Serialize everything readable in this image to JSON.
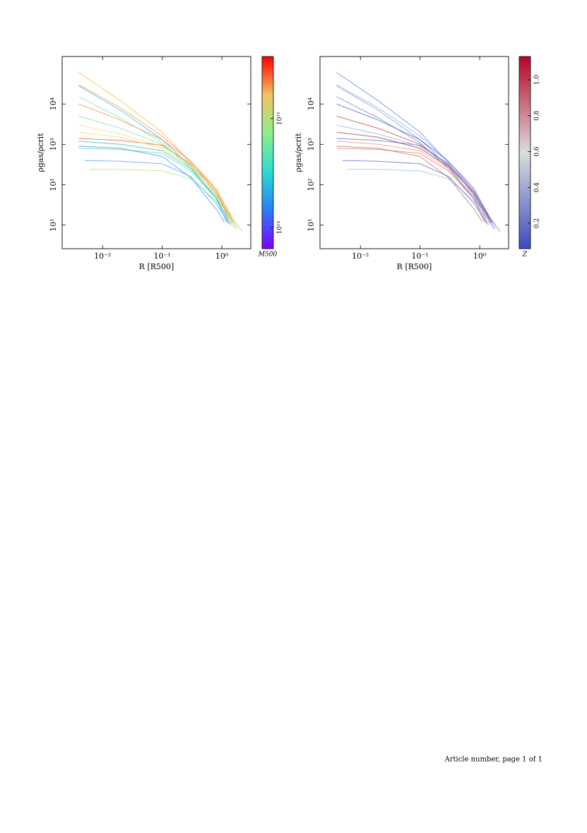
{
  "chart_data": [
    {
      "type": "line",
      "xlabel": "R [R500]",
      "ylabel": "ρgas/ρcrit",
      "xlog": true,
      "ylog": true,
      "xlim": [
        0.0021,
        3.05
      ],
      "ylim": [
        2.6,
        150000
      ],
      "xticks": [
        {
          "value": 0.01,
          "label": "10⁻²"
        },
        {
          "value": 0.1,
          "label": "10⁻¹"
        },
        {
          "value": 1,
          "label": "10⁰"
        }
      ],
      "yticks": [
        {
          "value": 10,
          "label": "10¹"
        },
        {
          "value": 100,
          "label": "10²"
        },
        {
          "value": 1000,
          "label": "10³"
        },
        {
          "value": 10000,
          "label": "10⁴"
        }
      ],
      "colorbar": {
        "label": "M500",
        "log": true,
        "lim": [
          64000000000000,
          3700000000000000
        ],
        "ticks": [
          {
            "value": 100000000000000,
            "label": "10¹⁴"
          },
          {
            "value": 1000000000000000,
            "label": "10¹⁵"
          }
        ]
      },
      "series": [
        {
          "color": "#f3522a",
          "x": [
            0.004,
            0.02,
            0.1,
            0.3,
            0.8,
            1.3
          ],
          "values": [
            1400,
            1250,
            950,
            330,
            70,
            14
          ]
        },
        {
          "color": "#2bb5e8",
          "x": [
            0.004,
            0.02,
            0.1,
            0.3,
            0.8,
            1.2
          ],
          "values": [
            28000,
            7000,
            1300,
            280,
            45,
            12
          ]
        },
        {
          "color": "#7fe0a0",
          "x": [
            0.004,
            0.02,
            0.1,
            0.3,
            0.8,
            1.6
          ],
          "values": [
            5000,
            2500,
            1000,
            300,
            60,
            11
          ]
        },
        {
          "color": "#ffb347",
          "x": [
            0.004,
            0.02,
            0.1,
            0.3,
            0.8,
            1.8
          ],
          "values": [
            60000,
            12000,
            2000,
            350,
            55,
            8
          ]
        },
        {
          "color": "#4fd0c8",
          "x": [
            0.004,
            0.02,
            0.1,
            0.3,
            0.8,
            1.4
          ],
          "values": [
            800,
            750,
            600,
            220,
            45,
            10
          ]
        },
        {
          "color": "#d9e85a",
          "x": [
            0.004,
            0.02,
            0.1,
            0.3,
            0.8,
            1.9
          ],
          "values": [
            3000,
            1800,
            900,
            320,
            70,
            9
          ]
        },
        {
          "color": "#ff7a30",
          "x": [
            0.004,
            0.02,
            0.1,
            0.3,
            0.8,
            1.5
          ],
          "values": [
            10000,
            4000,
            1300,
            380,
            80,
            14
          ]
        },
        {
          "color": "#3a8cf0",
          "x": [
            0.004,
            0.02,
            0.1,
            0.3,
            0.8,
            1.1
          ],
          "values": [
            900,
            800,
            500,
            150,
            25,
            12
          ]
        },
        {
          "color": "#a2e878",
          "x": [
            0.006,
            0.02,
            0.1,
            0.3,
            0.8,
            1.7
          ],
          "values": [
            240,
            240,
            220,
            140,
            40,
            8
          ]
        },
        {
          "color": "#6fe8b0",
          "x": [
            0.004,
            0.02,
            0.1,
            0.3,
            0.8,
            2.2
          ],
          "values": [
            15000,
            4500,
            1100,
            250,
            45,
            7
          ]
        },
        {
          "color": "#ffd060",
          "x": [
            0.004,
            0.02,
            0.1,
            0.3,
            0.8,
            1.6
          ],
          "values": [
            2000,
            1500,
            800,
            280,
            65,
            12
          ]
        },
        {
          "color": "#5098f5",
          "x": [
            0.005,
            0.02,
            0.1,
            0.3,
            0.8,
            1.3
          ],
          "values": [
            400,
            380,
            330,
            160,
            35,
            11
          ]
        },
        {
          "color": "#ff9040",
          "x": [
            0.004,
            0.02,
            0.1,
            0.3,
            0.8,
            1.5
          ],
          "values": [
            30000,
            8000,
            1600,
            380,
            70,
            11
          ]
        },
        {
          "color": "#20c0b0",
          "x": [
            0.004,
            0.02,
            0.1,
            0.3,
            0.8,
            1.4
          ],
          "values": [
            1200,
            1000,
            700,
            250,
            50,
            10
          ]
        }
      ]
    },
    {
      "type": "line",
      "xlabel": "R [R500]",
      "ylabel": "ρgas/ρcrit",
      "xlog": true,
      "ylog": true,
      "xlim": [
        0.0021,
        3.05
      ],
      "ylim": [
        2.6,
        150000
      ],
      "xticks": [
        {
          "value": 0.01,
          "label": "10⁻²"
        },
        {
          "value": 0.1,
          "label": "10⁻¹"
        },
        {
          "value": 1,
          "label": "10⁰"
        }
      ],
      "yticks": [
        {
          "value": 10,
          "label": "10¹"
        },
        {
          "value": 100,
          "label": "10²"
        },
        {
          "value": 1000,
          "label": "10³"
        },
        {
          "value": 10000,
          "label": "10⁴"
        }
      ],
      "colorbar": {
        "label": "Z",
        "log": false,
        "lim": [
          0.058,
          1.13
        ],
        "ticks": [
          0.2,
          0.4,
          0.6,
          0.8,
          {
            "value": 1,
            "label": "1.0"
          }
        ]
      },
      "series": [
        {
          "color": "#4a6fd8",
          "x": [
            0.004,
            0.02,
            0.1,
            0.3,
            0.8,
            1.3
          ],
          "values": [
            1400,
            1250,
            950,
            330,
            70,
            14
          ]
        },
        {
          "color": "#7090e8",
          "x": [
            0.004,
            0.02,
            0.1,
            0.3,
            0.8,
            1.2
          ],
          "values": [
            28000,
            7000,
            1300,
            280,
            45,
            12
          ]
        },
        {
          "color": "#c84040",
          "x": [
            0.004,
            0.02,
            0.1,
            0.3,
            0.8,
            1.6
          ],
          "values": [
            5000,
            2500,
            1000,
            300,
            60,
            11
          ]
        },
        {
          "color": "#5a7ce0",
          "x": [
            0.004,
            0.02,
            0.1,
            0.3,
            0.8,
            1.8
          ],
          "values": [
            60000,
            12000,
            2000,
            350,
            55,
            8
          ]
        },
        {
          "color": "#e07060",
          "x": [
            0.004,
            0.02,
            0.1,
            0.3,
            0.8,
            1.4
          ],
          "values": [
            800,
            750,
            600,
            220,
            45,
            10
          ]
        },
        {
          "color": "#8aa8f0",
          "x": [
            0.004,
            0.02,
            0.1,
            0.3,
            0.8,
            1.9
          ],
          "values": [
            3000,
            1800,
            900,
            320,
            70,
            9
          ]
        },
        {
          "color": "#3b55c8",
          "x": [
            0.004,
            0.02,
            0.1,
            0.3,
            0.8,
            1.5
          ],
          "values": [
            10000,
            4000,
            1300,
            380,
            80,
            14
          ]
        },
        {
          "color": "#d06050",
          "x": [
            0.004,
            0.02,
            0.1,
            0.3,
            0.8,
            1.1
          ],
          "values": [
            900,
            800,
            500,
            150,
            25,
            12
          ]
        },
        {
          "color": "#a0b8f5",
          "x": [
            0.006,
            0.02,
            0.1,
            0.3,
            0.8,
            1.7
          ],
          "values": [
            240,
            240,
            220,
            140,
            40,
            8
          ]
        },
        {
          "color": "#6080e0",
          "x": [
            0.004,
            0.02,
            0.1,
            0.3,
            0.8,
            2.2
          ],
          "values": [
            15000,
            4500,
            1100,
            250,
            45,
            7
          ]
        },
        {
          "color": "#b03030",
          "x": [
            0.004,
            0.02,
            0.1,
            0.3,
            0.8,
            1.6
          ],
          "values": [
            2000,
            1500,
            800,
            280,
            65,
            12
          ]
        },
        {
          "color": "#5068d0",
          "x": [
            0.005,
            0.02,
            0.1,
            0.3,
            0.8,
            1.3
          ],
          "values": [
            400,
            380,
            330,
            160,
            35,
            11
          ]
        },
        {
          "color": "#90a8f0",
          "x": [
            0.004,
            0.02,
            0.1,
            0.3,
            0.8,
            1.5
          ],
          "values": [
            30000,
            8000,
            1600,
            380,
            70,
            11
          ]
        },
        {
          "color": "#e89080",
          "x": [
            0.004,
            0.02,
            0.1,
            0.3,
            0.8,
            1.4
          ],
          "values": [
            1200,
            1000,
            700,
            250,
            50,
            10
          ]
        }
      ]
    }
  ],
  "footer": "Article number, page 1 of 1"
}
